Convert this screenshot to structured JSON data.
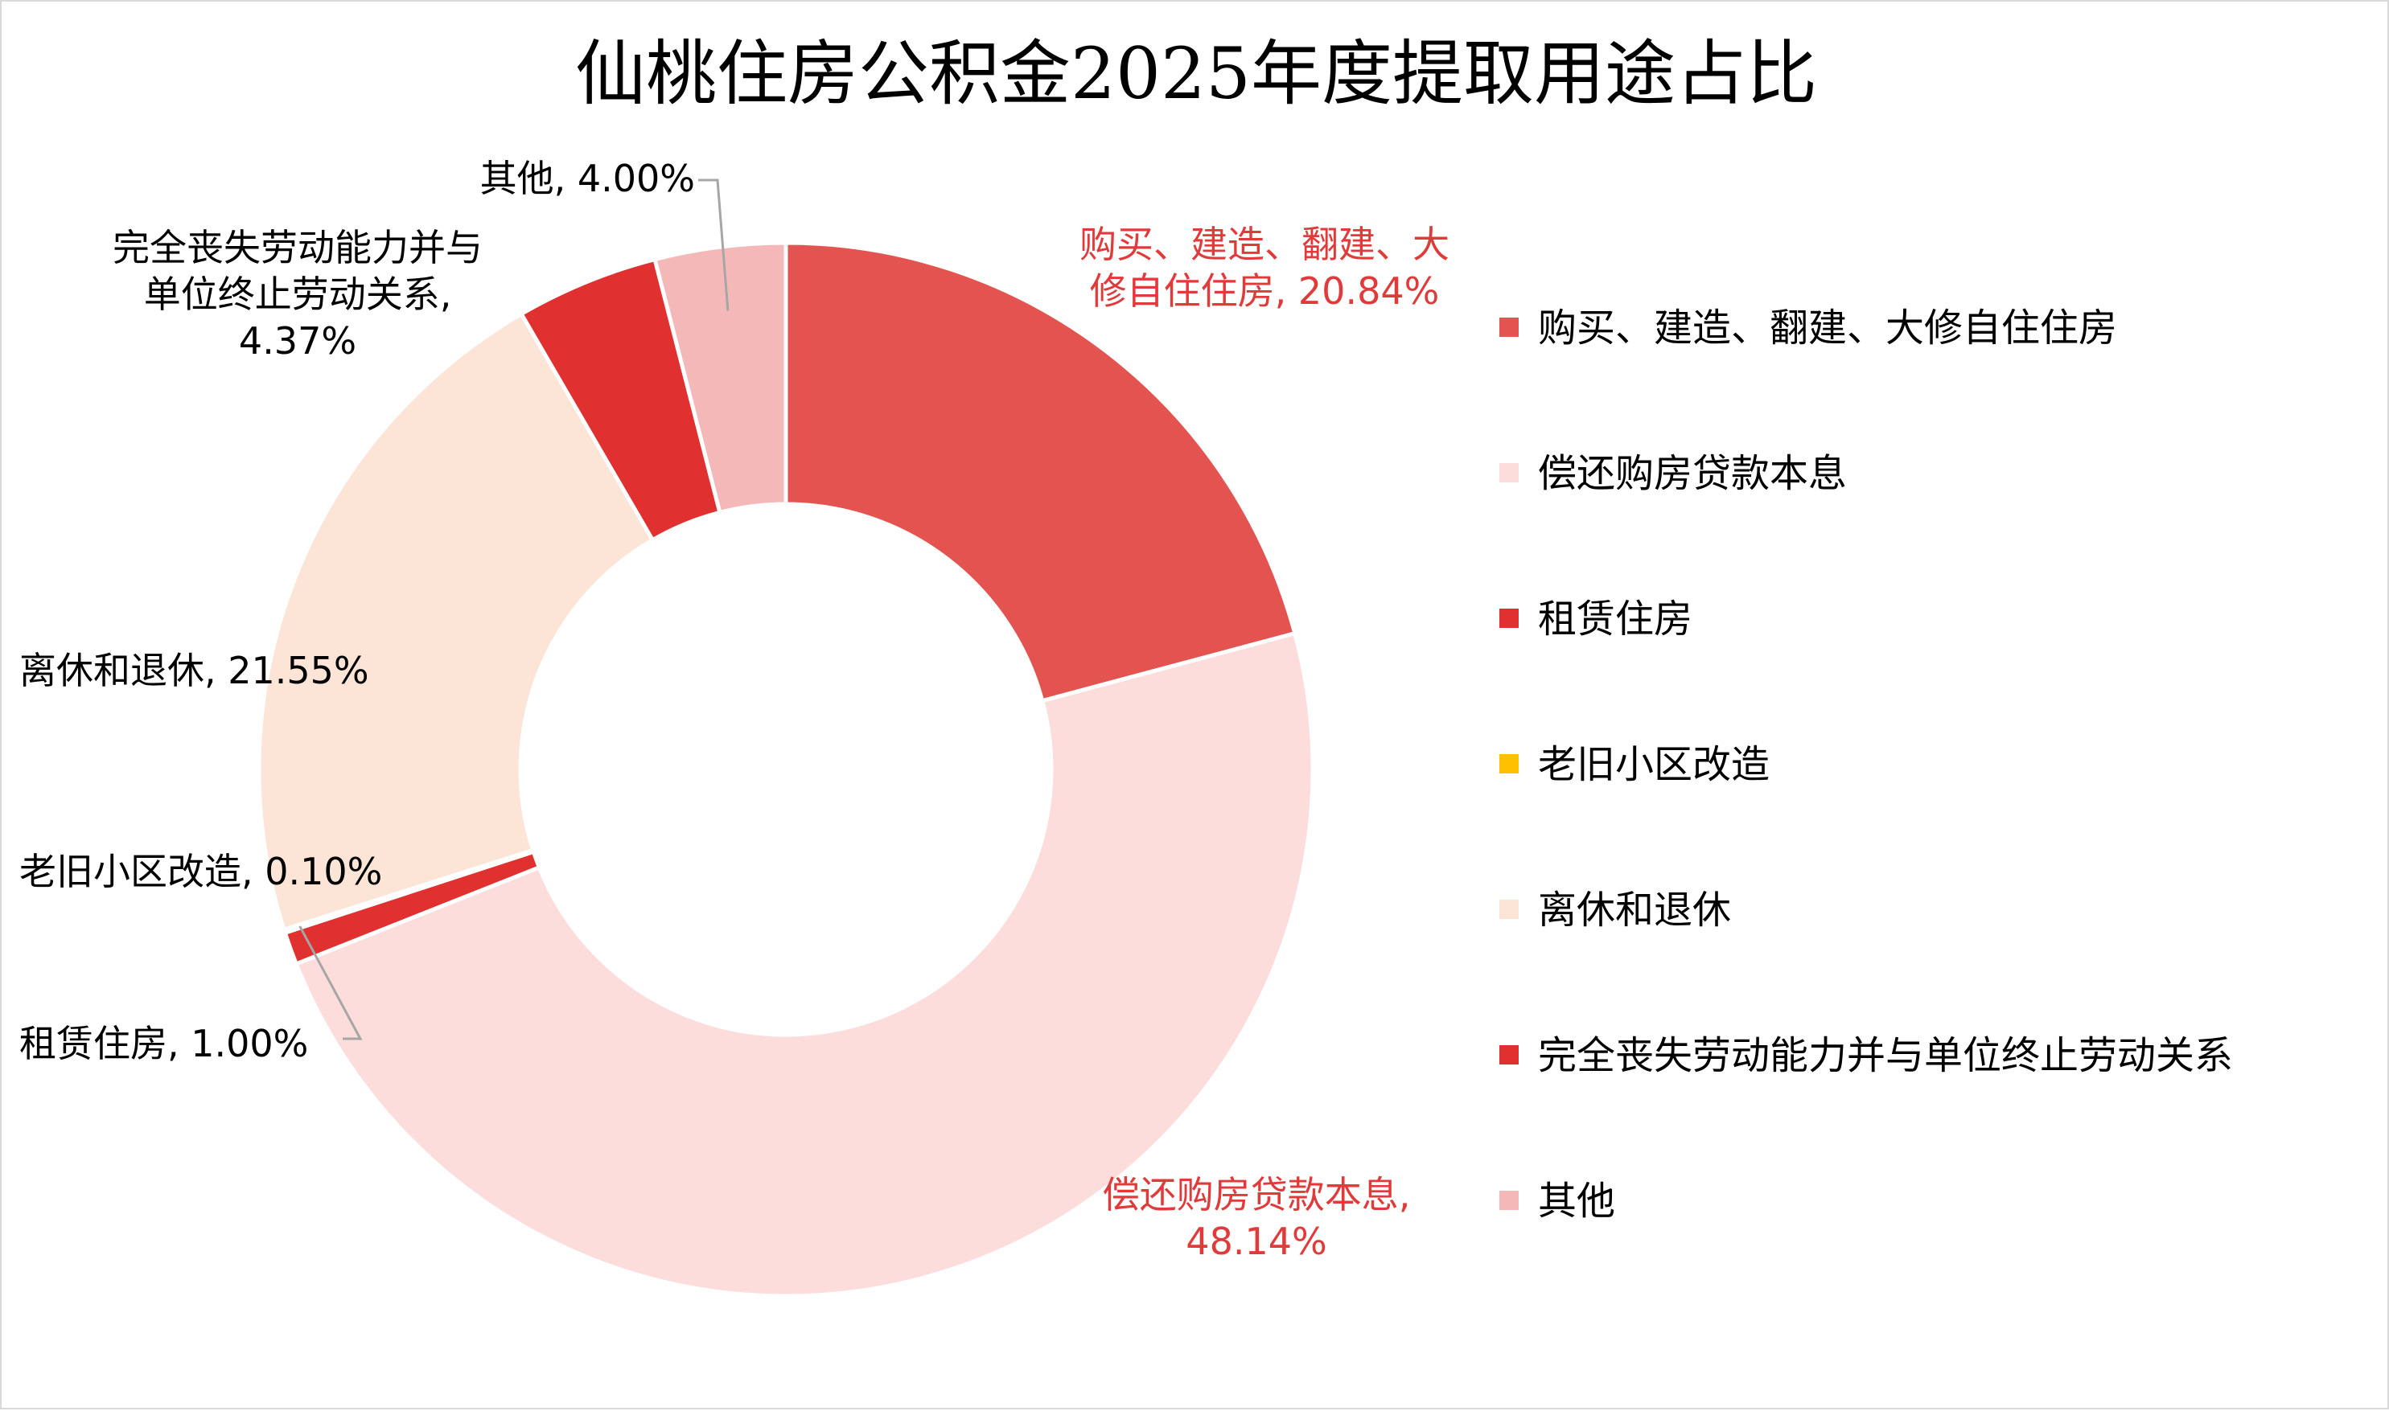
{
  "chart_data": {
    "type": "pie",
    "donut": true,
    "title": "仙桃住房公积金2025年度提取用途占比",
    "value_unit": "%",
    "legend_position": "right",
    "slices": [
      {
        "name": "购买、建造、翻建、大修自住住房",
        "value": 20.84,
        "value_label": "20.84%",
        "color": "#e35450",
        "label_color": "#e03a3a",
        "label_lines": [
          "购买、建造、翻建、大",
          "修自住住房, 20.84%"
        ]
      },
      {
        "name": "偿还购房贷款本息",
        "value": 48.14,
        "value_label": "48.14%",
        "color": "#fddcdc",
        "label_color": "#e03a3a",
        "label_lines": [
          "偿还购房贷款本息,",
          "48.14%"
        ]
      },
      {
        "name": "租赁住房",
        "value": 1.0,
        "value_label": "1.00%",
        "color": "#e03030",
        "label_color": "#000000",
        "label_lines": [
          "租赁住房, 1.00%"
        ]
      },
      {
        "name": "老旧小区改造",
        "value": 0.1,
        "value_label": "0.10%",
        "color": "#ffc000",
        "label_color": "#000000",
        "label_lines": [
          "老旧小区改造, 0.10%"
        ]
      },
      {
        "name": "离休和退休",
        "value": 21.55,
        "value_label": "21.55%",
        "color": "#fce4d6",
        "label_color": "#000000",
        "label_lines": [
          "离休和退休, 21.55%"
        ]
      },
      {
        "name": "完全丧失劳动能力并与单位终止劳动关系",
        "value": 4.37,
        "value_label": "4.37%",
        "color": "#e03030",
        "label_color": "#000000",
        "label_lines": [
          "完全丧失劳动能力并与",
          "单位终止劳动关系,",
          "4.37%"
        ]
      },
      {
        "name": "其他",
        "value": 4.0,
        "value_label": "4.00%",
        "color": "#f4b8b8",
        "label_color": "#000000",
        "label_lines": [
          "其他, 4.00%"
        ]
      }
    ]
  }
}
